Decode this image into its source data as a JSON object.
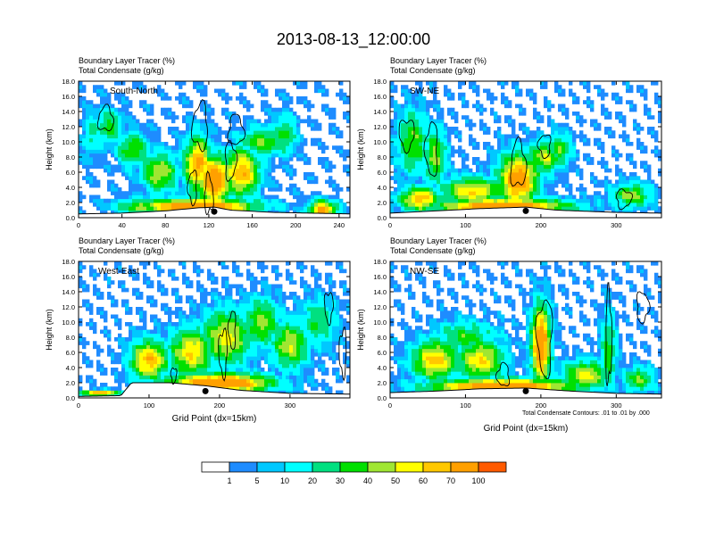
{
  "figure": {
    "title": "2013-08-13_12:00:00",
    "footnote": "Total Condensate Contours: .01 to .01 by .000",
    "xlabel": "Grid Point (dx=15km)",
    "ylabel": "Height (km)"
  },
  "colorbar": {
    "labels": [
      "1",
      "5",
      "10",
      "20",
      "30",
      "40",
      "50",
      "60",
      "70",
      "100"
    ],
    "colors": [
      "#ffffff",
      "#1e8cff",
      "#00c8ff",
      "#00ffff",
      "#00e080",
      "#00e000",
      "#a0e632",
      "#ffff00",
      "#ffc800",
      "#ffa000",
      "#ff5a00",
      "#ff0000"
    ]
  },
  "chart_data": [
    {
      "type": "heatmap",
      "panel_label": "South-North",
      "title_line1": "Boundary Layer Tracer   (%)",
      "title_line2": "Total Condensate   (g/kg)",
      "xlabel": "",
      "ylabel": "Height (km)",
      "xlim": [
        0,
        250
      ],
      "ylim": [
        0,
        18
      ],
      "xticks": [
        "0",
        "40",
        "80",
        "120",
        "160",
        "200",
        "240"
      ],
      "xtick_values": [
        0,
        40,
        80,
        120,
        160,
        200,
        240
      ],
      "yticks": [
        "0.0",
        "2.0",
        "4.0",
        "6.0",
        "8.0",
        "10.0",
        "12.0",
        "14.0",
        "16.0",
        "18.0"
      ],
      "terrain": [
        [
          0,
          0.5
        ],
        [
          40,
          0.6
        ],
        [
          80,
          0.9
        ],
        [
          110,
          1.3
        ],
        [
          125,
          1.4
        ],
        [
          140,
          1.0
        ],
        [
          180,
          0.7
        ],
        [
          250,
          0.5
        ]
      ],
      "plumes": [
        {
          "x": 28,
          "z": 12,
          "v": 35,
          "sx": 12,
          "sz": 2.2
        },
        {
          "x": 50,
          "z": 9,
          "v": 40,
          "sx": 14,
          "sz": 2.2
        },
        {
          "x": 75,
          "z": 6,
          "v": 50,
          "sx": 16,
          "sz": 2.5
        },
        {
          "x": 110,
          "z": 7,
          "v": 75,
          "sx": 12,
          "sz": 3.5
        },
        {
          "x": 125,
          "z": 5,
          "v": 90,
          "sx": 15,
          "sz": 3.0
        },
        {
          "x": 150,
          "z": 6,
          "v": 70,
          "sx": 16,
          "sz": 3.0
        },
        {
          "x": 170,
          "z": 10,
          "v": 40,
          "sx": 22,
          "sz": 1.8
        },
        {
          "x": 190,
          "z": 11,
          "v": 35,
          "sx": 10,
          "sz": 2.5
        },
        {
          "x": 110,
          "z": 1.5,
          "v": 95,
          "sx": 50,
          "sz": 1.0
        },
        {
          "x": 60,
          "z": 1.5,
          "v": 45,
          "sx": 25,
          "sz": 1.0
        },
        {
          "x": 225,
          "z": 1.0,
          "v": 80,
          "sx": 12,
          "sz": 1.2
        },
        {
          "x": 12,
          "z": 11,
          "v": 22,
          "sx": 8,
          "sz": 3.0
        }
      ],
      "marker": [
        125,
        0.8
      ],
      "contours": [
        {
          "x": 25,
          "z": 13,
          "rx": 7,
          "rz": 1.6
        },
        {
          "x": 112,
          "z": 12,
          "rx": 7,
          "rz": 3.0
        },
        {
          "x": 140,
          "z": 7.5,
          "rx": 5,
          "rz": 2.5
        },
        {
          "x": 145,
          "z": 11.5,
          "rx": 7,
          "rz": 2.0
        },
        {
          "x": 105,
          "z": 4,
          "rx": 4,
          "rz": 2.2
        },
        {
          "x": 120,
          "z": 3,
          "rx": 4,
          "rz": 2.5
        }
      ]
    },
    {
      "type": "heatmap",
      "panel_label": "SW-NE",
      "title_line1": "Boundary Layer Tracer   (%)",
      "title_line2": "Total Condensate   (g/kg)",
      "xlabel": "",
      "ylabel": "Height (km)",
      "xlim": [
        0,
        360
      ],
      "ylim": [
        0,
        18
      ],
      "xticks": [
        "0",
        "100",
        "200",
        "300"
      ],
      "xtick_values": [
        0,
        100,
        200,
        300
      ],
      "yticks": [
        "0.0",
        "2.0",
        "4.0",
        "6.0",
        "8.0",
        "10.0",
        "12.0",
        "14.0",
        "16.0",
        "18.0"
      ],
      "terrain": [
        [
          0,
          0.6
        ],
        [
          60,
          0.9
        ],
        [
          120,
          1.2
        ],
        [
          180,
          1.4
        ],
        [
          220,
          1.0
        ],
        [
          300,
          0.7
        ],
        [
          360,
          0.6
        ]
      ],
      "plumes": [
        {
          "x": 30,
          "z": 10,
          "v": 40,
          "sx": 20,
          "sz": 4.0
        },
        {
          "x": 60,
          "z": 8,
          "v": 45,
          "sx": 14,
          "sz": 3.5
        },
        {
          "x": 110,
          "z": 3.5,
          "v": 60,
          "sx": 40,
          "sz": 1.8
        },
        {
          "x": 170,
          "z": 5,
          "v": 85,
          "sx": 25,
          "sz": 3.2
        },
        {
          "x": 205,
          "z": 8,
          "v": 50,
          "sx": 22,
          "sz": 2.0
        },
        {
          "x": 225,
          "z": 9,
          "v": 40,
          "sx": 15,
          "sz": 2.0
        },
        {
          "x": 320,
          "z": 3,
          "v": 45,
          "sx": 25,
          "sz": 1.5
        },
        {
          "x": 150,
          "z": 1.5,
          "v": 95,
          "sx": 80,
          "sz": 1.0
        },
        {
          "x": 40,
          "z": 2.5,
          "v": 70,
          "sx": 25,
          "sz": 1.5
        }
      ],
      "marker": [
        180,
        0.9
      ],
      "contours": [
        {
          "x": 22,
          "z": 11,
          "rx": 10,
          "rz": 2.0
        },
        {
          "x": 55,
          "z": 9,
          "rx": 8,
          "rz": 3.5
        },
        {
          "x": 170,
          "z": 7,
          "rx": 10,
          "rz": 3.0
        },
        {
          "x": 205,
          "z": 9.5,
          "rx": 8,
          "rz": 1.5
        },
        {
          "x": 310,
          "z": 2.5,
          "rx": 10,
          "rz": 1.2
        }
      ]
    },
    {
      "type": "heatmap",
      "panel_label": "West-East",
      "title_line1": "Boundary Layer Tracer   (%)",
      "title_line2": "Total Condensate   (g/kg)",
      "xlabel": "Grid Point (dx=15km)",
      "ylabel": "Height (km)",
      "xlim": [
        0,
        385
      ],
      "ylim": [
        0,
        18
      ],
      "xticks": [
        "0",
        "100",
        "200",
        "300"
      ],
      "xtick_values": [
        0,
        100,
        200,
        300
      ],
      "yticks": [
        "0.0",
        "2.0",
        "4.0",
        "6.0",
        "8.0",
        "10.0",
        "12.0",
        "14.0",
        "16.0",
        "18.0"
      ],
      "terrain": [
        [
          0,
          0.2
        ],
        [
          60,
          0.3
        ],
        [
          75,
          2.0
        ],
        [
          130,
          2.0
        ],
        [
          180,
          1.6
        ],
        [
          230,
          1.0
        ],
        [
          300,
          0.6
        ],
        [
          385,
          0.5
        ]
      ],
      "plumes": [
        {
          "x": 100,
          "z": 5,
          "v": 70,
          "sx": 25,
          "sz": 2.5
        },
        {
          "x": 160,
          "z": 6,
          "v": 60,
          "sx": 30,
          "sz": 3.0
        },
        {
          "x": 210,
          "z": 8,
          "v": 55,
          "sx": 35,
          "sz": 3.5
        },
        {
          "x": 260,
          "z": 10,
          "v": 45,
          "sx": 25,
          "sz": 3.0
        },
        {
          "x": 300,
          "z": 7,
          "v": 50,
          "sx": 25,
          "sz": 3.0
        },
        {
          "x": 200,
          "z": 2.0,
          "v": 95,
          "sx": 70,
          "sz": 1.2
        },
        {
          "x": 340,
          "z": 10,
          "v": 30,
          "sx": 25,
          "sz": 3.0
        },
        {
          "x": 30,
          "z": 0.6,
          "v": 80,
          "sx": 25,
          "sz": 0.4
        }
      ],
      "marker": [
        180,
        0.9
      ],
      "contours": [
        {
          "x": 205,
          "z": 6,
          "rx": 6,
          "rz": 3.0
        },
        {
          "x": 218,
          "z": 9,
          "rx": 5,
          "rz": 2.5
        },
        {
          "x": 355,
          "z": 12,
          "rx": 6,
          "rz": 2.0
        },
        {
          "x": 375,
          "z": 6,
          "rx": 5,
          "rz": 3.0
        },
        {
          "x": 135,
          "z": 3,
          "rx": 4,
          "rz": 1.0
        }
      ]
    },
    {
      "type": "heatmap",
      "panel_label": "NW-SE",
      "title_line1": "Boundary Layer Tracer   (%)",
      "title_line2": "Total Condensate   (g/kg)",
      "xlabel": "Grid Point (dx=15km)",
      "ylabel": "Height (km)",
      "xlim": [
        0,
        360
      ],
      "ylim": [
        0,
        18
      ],
      "xticks": [
        "0",
        "100",
        "200",
        "300"
      ],
      "xtick_values": [
        0,
        100,
        200,
        300
      ],
      "yticks": [
        "0.0",
        "2.0",
        "4.0",
        "6.0",
        "8.0",
        "10.0",
        "12.0",
        "14.0",
        "16.0",
        "18.0"
      ],
      "terrain": [
        [
          0,
          0.7
        ],
        [
          60,
          0.9
        ],
        [
          120,
          1.2
        ],
        [
          180,
          1.3
        ],
        [
          240,
          0.9
        ],
        [
          300,
          0.6
        ],
        [
          360,
          0.5
        ]
      ],
      "plumes": [
        {
          "x": 60,
          "z": 5,
          "v": 65,
          "sx": 30,
          "sz": 2.5
        },
        {
          "x": 120,
          "z": 5,
          "v": 60,
          "sx": 30,
          "sz": 2.5
        },
        {
          "x": 100,
          "z": 8,
          "v": 35,
          "sx": 40,
          "sz": 2.0
        },
        {
          "x": 200,
          "z": 7,
          "v": 90,
          "sx": 12,
          "sz": 5.0
        },
        {
          "x": 260,
          "z": 3,
          "v": 55,
          "sx": 30,
          "sz": 1.8
        },
        {
          "x": 150,
          "z": 1.5,
          "v": 95,
          "sx": 90,
          "sz": 1.0
        },
        {
          "x": 290,
          "z": 6,
          "v": 35,
          "sx": 10,
          "sz": 5.0
        },
        {
          "x": 330,
          "z": 2.5,
          "v": 40,
          "sx": 20,
          "sz": 1.5
        }
      ],
      "marker": [
        180,
        0.9
      ],
      "contours": [
        {
          "x": 205,
          "z": 8,
          "rx": 10,
          "rz": 5.0
        },
        {
          "x": 290,
          "z": 8,
          "rx": 4,
          "rz": 6.0
        },
        {
          "x": 335,
          "z": 12,
          "rx": 8,
          "rz": 2.0
        },
        {
          "x": 150,
          "z": 3,
          "rx": 8,
          "rz": 1.5
        }
      ]
    }
  ]
}
